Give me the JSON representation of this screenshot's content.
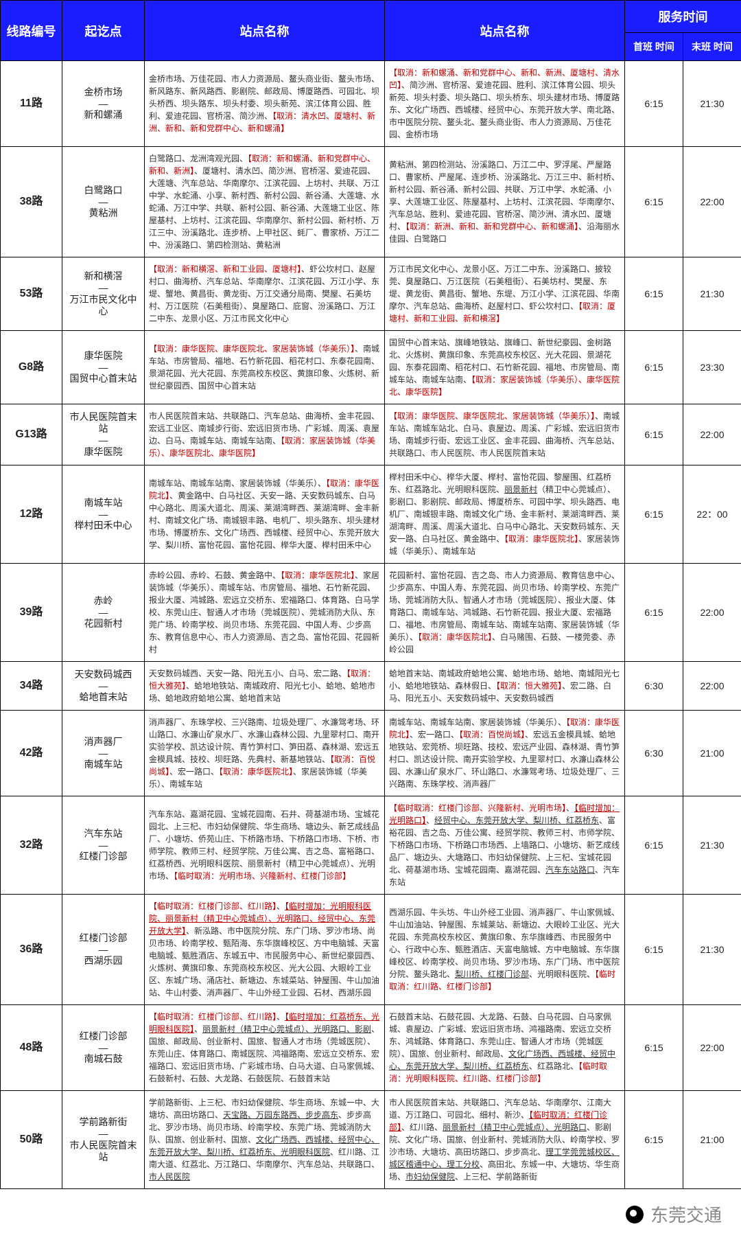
{
  "headers": {
    "route_no": "线路编号",
    "endpoints": "起讫点",
    "stops_a": "站点名称",
    "stops_b": "站点名称",
    "service_time": "服务时间",
    "first_bus": "首班\n时间",
    "last_bus": "末班\n时间"
  },
  "col_widths": {
    "route_no": 90,
    "endpoints": 120,
    "stops_a": 350,
    "stops_b": 350,
    "first": 85,
    "last": 85
  },
  "header_bg": "#1a1eff",
  "header_color": "#ffffff",
  "border_color": "#000000",
  "red_color": "#c00000",
  "rows": [
    {
      "route_no": "11路",
      "endpoints_a": "金桥市场",
      "endpoints_b": "新和螺涌",
      "stops_a": [
        {
          "t": "金桥市场、万佳花园、市人力资源局、鳌头商业街、鳌头市场、新风路东、新风路西、影剧院、邮政局、博厦路西、可园北、坝头桥西、坝头路东、坝头村委、坝头新苑、滨江体育公园、胜利、爱迪花园、官桥滘、简沙洲、"
        },
        {
          "t": "【取消：清水凹、厦塘村、新洲、新和、新和党群中心、新和螺涌】",
          "c": "red"
        }
      ],
      "stops_b": [
        {
          "t": "【取消：新和螺涌、新和党群中心、新和、新洲、厦塘村、清水凹】",
          "c": "red"
        },
        {
          "t": "、简沙洲、官桥滘、爱迪花园、胜利、滨江体育公园、坝头新苑、坝头村委、坝头路口、坝头桥东、坝头建材市场、博厦路东、文化广场西、西城楼、经贸中心、东莞开放大学、南北路、市中医院分院、鳌头北、鳌头商业街、市人力资源局、万佳花园、金桥市场"
        }
      ],
      "first": "6:15",
      "last": "21:30"
    },
    {
      "route_no": "38路",
      "endpoints_a": "白鹭路口",
      "endpoints_b": "黄粘洲",
      "stops_a": [
        {
          "t": "白鹭路口、龙洲湾观光园、"
        },
        {
          "t": "【取消：新和螺涌、新和党群中心、新和、新洲】",
          "c": "red"
        },
        {
          "t": "、厦塘村、清水凹、简沙洲、官桥滘、爱迪花园、大莲塘、汽车总站、华南摩尔、江滨花园、上坊村、共联、万江中学、水蛇涌、小享、新村西、新村公园、新谷涌、大莲塘、水蛇涌、万江中学、共联、新村公园、新谷涌、大莲塘工业区、陈屋基村、上坊村、江滨花园、华南摩尔、新村公园、新村桥、万江三中、汾溪路北、连步桥、上甲社区、蚝厂、曹家桥、万江二中、汾溪路口、第四检测站、黄粘洲"
        }
      ],
      "stops_b": [
        {
          "t": "黄粘洲、第四检测站、汾溪路口、万江二中、罗浮尾、严屋路口、曹家桥、严屋尾、连步桥、汾溪路北、万江三中、新村桥、新村公园、新谷涌、新村公园、共联、万江中学、水蛇涌、小享、大莲塘工业区、陈屋基村、上坊村、江滨花园、华南摩尔、汽车总站、胜利、爱迪花园、官桥滘、简沙洲、清水凹、厦塘村、"
        },
        {
          "t": "【取消：新洲、新和、新和党群中心、新和螺涌】",
          "c": "red"
        },
        {
          "t": "、沿海丽水佳园、白鹭路口"
        }
      ],
      "first": "6:15",
      "last": "22:00"
    },
    {
      "route_no": "53路",
      "endpoints_a": "新和横滘",
      "endpoints_b": "万江市民文化中心",
      "stops_a": [
        {
          "t": "【取消：新和横滘、新和工业园、厦塘村】",
          "c": "red"
        },
        {
          "t": "、虾公坎村口、赵屋村口、曲海桥、汽车总站、华南摩尔、江滨花园、万江小学、东堤、蟹地、黄昌街、黄龙街、万江交通分局南、樊屋、石美坊村、万江医院（石美租街）、臭屋路口、庇窗、汾溪路口、万江二中东、龙景小区、万江市民文化中心"
        }
      ],
      "stops_b": [
        {
          "t": "万江市民文化中心、龙景小区、万江二中东、汾溪路口、披较莞、臭屋路口、万江医院（石美租街）、石美坊村、樊屋、东堤、黄龙街、黄昌街、蟹地、东堤、万江小学、江滨花园、华南摩尔、汽车总站、曲海桥、赵屋村口、虾公坎村口、"
        },
        {
          "t": "【取消：厦塘村、新和工业园、新和横滘】",
          "c": "red"
        }
      ],
      "first": "6:15",
      "last": "21:30"
    },
    {
      "route_no": "G8路",
      "endpoints_a": "康华医院",
      "endpoints_b": "国贸中心首末站",
      "stops_a": [
        {
          "t": "【取消：康华医院、康华医院北、家居装饰城（华美乐）】",
          "c": "red"
        },
        {
          "t": "、南城车站、市房管局、福地、石竹新花园、稻花村口、东泰花园南、景湖花园、光大花园、东莞高校东校区、黄旗印象、火炼树、新世纪豪园西、国贸中心首末站"
        }
      ],
      "stops_b": [
        {
          "t": "国贸中心首末站、旗峰地铁站、旗峰口、新世纪豪园、金树路北、火炼树、黄旗印象、东莞高校东校区、光大花园、景湖花园、东泰花园南、稻花村口、石竹新花园、福地、市房管局、南城车站、南城车站南、"
        },
        {
          "t": "【取消：家居装饰城（华美乐）、康华医院北、康华医院】",
          "c": "red"
        }
      ],
      "first": "6:15",
      "last": "23:30"
    },
    {
      "route_no": "G13路",
      "endpoints_a": "市人民医院首末站",
      "endpoints_b": "康华医院",
      "stops_a": [
        {
          "t": "市人民医院首末站、共联路口、汽车总站、曲海桥、金丰花园、宏远工业区、南城步行街、宏远旧货市场、广彩城、周溪、袁屋边、白马、南城车站、南城车站南、"
        },
        {
          "t": "【取消：家居装饰城（华美乐）、康华医院北、康华医院】",
          "c": "red"
        }
      ],
      "stops_b": [
        {
          "t": "【取消：康华医院、康华医院北、家居装饰城（华美乐）】",
          "c": "red"
        },
        {
          "t": "、南城车站、南城车站北、白马、袁屋边、周溪、广彩城、宏远旧货市场、南城步行街、宏远工业区、金丰花园、曲海桥、汽车总站、共联路口、市人民医院、市人民医院首末站"
        }
      ],
      "first": "6:15",
      "last": "22:00"
    },
    {
      "route_no": "12路",
      "endpoints_a": "南城车站",
      "endpoints_b": "榉村田禾中心",
      "stops_a": [
        {
          "t": "南城车站、南城车站南、家居装饰城（华美乐）、"
        },
        {
          "t": "【取消：康华医院北】",
          "c": "red"
        },
        {
          "t": "、黄金路中、白马社区、天安一路、天安数码城东、白马中心路北、周溪大道北、周溪、莱湖湾畔西、莱湖湾畔、金丰新村、南城文化广场、南城银丰路、电机厂、坝头路东、坝头建材市场、博厦桥东、文化广场西、西城楼、经贸中心、东莞开放大学、梨川桥、富怡花园、富怡花园、榉华大厦、榉村田禾中心"
        }
      ],
      "stops_b": [
        {
          "t": "榉村田禾中心、榉华大厦、榉村、富怡花园、黎屋围、红荔桥东、红荔路北、光明眼科医院、"
        },
        {
          "t": "丽景新村",
          "u": true
        },
        {
          "t": "（精卫中心莞城点）、影剧口、影剧院、邮政局、博厦桥东、可园中学、坝头路西、电机厂、南城银丰路、南城文化广场、金丰新村、莱湖湾畔西、莱湖湾畔、周溪、周溪大道北、白马中心路北、天安数码城东、天安一路、白马社区、黄金路中、"
        },
        {
          "t": "【取消：康华医院北】",
          "c": "red"
        },
        {
          "t": "、家居装饰城（华美乐）、南城车站"
        }
      ],
      "first": "6:15",
      "last": "22：00"
    },
    {
      "route_no": "39路",
      "endpoints_a": "赤岭",
      "endpoints_b": "花园新村",
      "stops_a": [
        {
          "t": "赤岭公园、赤岭、石鼓、黄金路中、"
        },
        {
          "t": "【取消：康华医院北】",
          "c": "red"
        },
        {
          "t": "、家居装饰城（华美乐）、南城车站、市房管局、福地、石竹新花园、报业大厦、鸿城路、宏远立交桥东、宏福路口、体育路、白马学校、东莞山庄、智通人才市场（莞城医院）、莞城消防大队、东莞广场、岭南学校、尚贝市场、东莞花园、中国人寿、少步高东、教育信息中心、市人力资源局、吉之岛、富怡花园、花园新村"
        }
      ],
      "stops_b": [
        {
          "t": "花园新村、富怡花园、吉之岛、市人力资源局、教育信息中心、少步高东、中国人寿、东莞花园、尚贝市场、岭南学校、东莞广场、莞城消防大队、智通人才市场（莞城医院）、报业大厦、体育路口、南城车站、鸿城路、石竹新花园、报业大厦、宏福路口、福地、市房管局、南城车站、南城车站南、家居装饰城（华美乐）、"
        },
        {
          "t": "【取消：康华医院北】",
          "c": "red"
        },
        {
          "t": "、白马赌围、石鼓、一楼莞委、赤岭公园"
        }
      ],
      "first": "6:15",
      "last": "22:00"
    },
    {
      "route_no": "34路",
      "endpoints_a": "天安数码城西",
      "endpoints_b": "蛤地首末站",
      "stops_a": [
        {
          "t": "天安数码城西、天安一路、阳光五小、白马、宏二路、"
        },
        {
          "t": "【取消：恒大雅苑】",
          "c": "red"
        },
        {
          "t": "、蛤地地铁站、南城政府、阳光七小、蛤地、蛤地市场、蛤地政府蛤地公寓、蛤地首末站"
        }
      ],
      "stops_b": [
        {
          "t": "蛤地首末站、南城政府蛤地公寓、蛤地市场、蛤地、南城阳光七小、蛤地地铁站、森林假日、"
        },
        {
          "t": "【取消：恒大雅苑】",
          "c": "red"
        },
        {
          "t": "、宏二路、白马、阳光五小、天安数码城中、天安数码城西"
        }
      ],
      "first": "6:30",
      "last": "22:00"
    },
    {
      "route_no": "42路",
      "endpoints_a": "消声器厂",
      "endpoints_b": "南城车站",
      "stops_a": [
        {
          "t": "消声器厂、东珠学校、三兴路南、垃圾处理厂、水濂驾考场、环山路口、水濂山矿泉水厂、水濂山森林公园、九里翠村口、南开实验学校、凯达设计院、青竹笋村口、笋田荔、森林湖、宏远五金模具城、技校、坝旺路、先典村、新基地铁站、"
        },
        {
          "t": "【取消：百悦尚城】",
          "c": "red"
        },
        {
          "t": "、宏一路口、"
        },
        {
          "t": "【取消：康华医院北】",
          "c": "red"
        },
        {
          "t": "、家居装饰城（华美乐）、南城车站"
        }
      ],
      "stops_b": [
        {
          "t": "南城车站、南城车站南、家居装饰城（华美乐）、"
        },
        {
          "t": "【取消：康华医院北】",
          "c": "red"
        },
        {
          "t": "、宏一路口、"
        },
        {
          "t": "【取消：百悦尚城】",
          "c": "red"
        },
        {
          "t": "、宏远五金模具城、蛤地地铁站、宏莞桥、坝旺路、技校、宏远产业园、森林湖、青竹笋村口、凯达设计院、南开实验学校、九里翠村口、水濂山森林公园、水濂山矿泉水厂、环山路口、水濂驾考场、垃圾处理厂、三兴路南、东珠学校、消声器厂"
        }
      ],
      "first": "6:30",
      "last": "21:00"
    },
    {
      "route_no": "32路",
      "endpoints_a": "汽车东站",
      "endpoints_b": "红楼门诊部",
      "stops_a": [
        {
          "t": "汽车东站、嘉湖花园、宝城花园南、石井、荷基湖市场、宝城花园北、上三杞、市妇幼保健院、华生商场、塘边头、新艺成线品厂、小塘坊、侨苑山庄、下桥路市场、下桥路口市场、下桥、市师学院、教师三村、经贸学院、万佳公寓、吉之岛、富裕路口、红荔桥西、光明眼科医院、丽景新村（精卫中心莞城点）、光明市场、"
        },
        {
          "t": "【临时取消：光明市场、兴隆新村、红楼门诊部】",
          "c": "red"
        }
      ],
      "stops_b": [
        {
          "t": "【临时取消：红楼门诊部、兴隆新村、光明市场】",
          "c": "red"
        },
        {
          "t": "、"
        },
        {
          "t": "【临时增加：光明路口】",
          "c": "red u"
        },
        {
          "t": "、"
        },
        {
          "t": "经贸中心、东莞开放大学、梨川桥、红荔桥东",
          "u": true
        },
        {
          "t": "、富裕花园、吉之岛、万佳公寓、经贸学院、教师三村、市师学院、下桥路口市场、下桥路口市场西、上墙路口、小塘坊、新艺成线品厂、塘边头、大塘路口、市妇幼保健院、上三杞、宝城花园北、荷基湖市场、宝城花园南、嘉湖花园、"
        },
        {
          "t": "汽车东站路口",
          "u": true
        },
        {
          "t": "、汽车东站"
        }
      ],
      "first": "6:15",
      "last": "21:30"
    },
    {
      "route_no": "36路",
      "endpoints_a": "红楼门诊部",
      "endpoints_b": "西湖乐园",
      "stops_a": [
        {
          "t": "【临时取消：红楼门诊部、红川路】",
          "c": "red"
        },
        {
          "t": "、"
        },
        {
          "t": "【临时增加：光明眼科医院、丽景新村（精卫中心莞城点）、光明路口、经贸中心、东莞开放大学】",
          "c": "red u"
        },
        {
          "t": "、新泓路、市中医院分院、东广门场、罗沙市场、尚贝市场、岭南学校、甄陌海、东华旗峰校区、方中电脑城、天富电脑城、甄胜酒店、东城五中、市民服务中心、新世纪豪园西、火炼树、黄旗印象、东莞商校东校区、光大公园、大眼岭工业区、东城广场、涌店社、新塘边、东城菜站、钟屋围、牛山加油站、牛山村委、消声器厂、牛山外经工业园、石材、西湖乐园"
        }
      ],
      "stops_b": [
        {
          "t": "西湖乐园、牛头坊、牛山外经工业园、消声器厂、牛山家佩城、牛山加油站、钟屋围、东城莱站、新塘边、大眼岭工业区、光大花园、东莞高校东校区、黄旗印象、东华旗峰西、市民服务中心、行政中心东、甄胜酒店、天富电脑城、方中电脑城、东华旗峰校区、岭南学校、尚贝市场、罗沙市场、东广门场、市中医院分院、鳌头路北、"
        },
        {
          "t": "梨川桥、红楼门诊部",
          "u": true
        },
        {
          "t": "、光明眼科医院、"
        },
        {
          "t": "【临时取消：红川路、红楼门诊部】",
          "c": "red"
        }
      ],
      "first": "6:15",
      "last": "21:30"
    },
    {
      "route_no": "48路",
      "endpoints_a": "红楼门诊部",
      "endpoints_b": "南城石鼓",
      "stops_a": [
        {
          "t": "【临时取消：红楼门诊部、红川路】",
          "c": "red"
        },
        {
          "t": "、"
        },
        {
          "t": "【临时增加：红荔桥东、光明眼科医院】",
          "c": "red u"
        },
        {
          "t": "、"
        },
        {
          "t": "丽景新村（精卫中心莞城点）、光明路口、影剧",
          "u": true
        },
        {
          "t": "、国旅、邮政局、创业新村、国旅、智通人才市场（莞城医院）、东莞山庄、体育路口、南城医院、鸿福路南、宏远立交桥东、宏福路口、宏远旧货市场、广彩城市场、白马大道、白马家佩城、石鼓新村、石鼓、大龙路、石鼓医院、石鼓首末站"
        }
      ],
      "stops_b": [
        {
          "t": "石鼓首末站、石鼓花园、大龙路、石鼓、白马花园、白马家佩城、袁屋边、广彩城、宏远旧货市场、鸿福路南、宏远立交桥东、鸿城路、体育路口、东莞山庄、智通人才市场（莞城医院）、国旅、创业新村、邮政局、"
        },
        {
          "t": "文化广场西、西城楼、经贸中心、东莞开放大学、梨川桥、红荔桥东",
          "u": true
        },
        {
          "t": "、红荔路北、"
        },
        {
          "t": "【临时取消：光明眼科医院、红川路、红楼门诊部】",
          "c": "red"
        }
      ],
      "first": "6:15",
      "last": "22:00"
    },
    {
      "route_no": "50路",
      "endpoints_a": "学前路新街",
      "endpoints_b": "市人民医院首末站",
      "stops_a": [
        {
          "t": "学前路新街、上三杞、市妇幼保健院、华生商场、东城一中、大塘坊、高田坊路口、"
        },
        {
          "t": "天宝路、万园东路西、步步高东",
          "u": true
        },
        {
          "t": "、步步高北、罗沙市场、尚贝市场、岭南学校、东莞广场、莞城消防大队、国旅、创业新村、国旅、"
        },
        {
          "t": "文化广场西、西城楼、经贸中心、东莞开放大学、梨川桥、红荔桥东、光明眼科医院",
          "u": true
        },
        {
          "t": "、红川路、江南大道、红荔北、万江路口、华南摩尔、汽车总站、共联路口、"
        },
        {
          "t": "市人民医院",
          "u": true
        }
      ],
      "stops_b": [
        {
          "t": "市人民医院首末站、共联路口、汽车总站、华南摩尔、江南大道、万江路口、可园北、细村、新沙、"
        },
        {
          "t": "【临时取消：红楼门诊部】",
          "c": "red u"
        },
        {
          "t": "、红川路、"
        },
        {
          "t": "丽景新村（精卫中心莞城点）、光明路口",
          "u": true
        },
        {
          "t": "、影剧院、文化广场、国旅、创业新村、莞城消防大队、岭南学校、罗沙市场、大塘坊、高田坊路口、步步高北、"
        },
        {
          "t": "理工学莞莞城校区、城区稽通中心、理工分校",
          "u": true
        },
        {
          "t": "、高田北、东城一中、大塘坊、华生商场、"
        },
        {
          "t": "市妇幼保健院",
          "u": true
        },
        {
          "t": "、上三杞、学前路新街"
        }
      ],
      "first": "6:15",
      "last": "21:00"
    }
  ],
  "footer_source": "东莞交通"
}
